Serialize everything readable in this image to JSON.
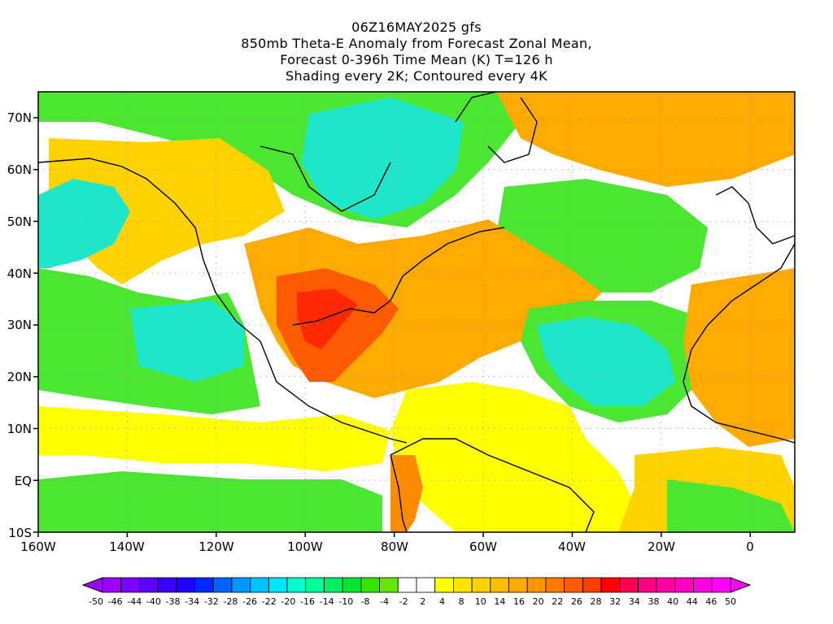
{
  "title": {
    "line1": "06Z16MAY2025 gfs",
    "line2": "850mb Theta-E Anomaly from Forecast Zonal Mean,",
    "line3": "Forecast 0-396h Time Mean (K) T=126 h",
    "line4": "Shading every 2K; Contoured every 4K"
  },
  "axes": {
    "lon_labels": [
      "160W",
      "140W",
      "120W",
      "100W",
      "80W",
      "60W",
      "40W",
      "20W",
      "0"
    ],
    "lat_labels": [
      "70N",
      "60N",
      "50N",
      "40N",
      "30N",
      "20N",
      "10N",
      "EQ",
      "10S"
    ],
    "lon_range": [
      -160,
      10
    ],
    "lat_range": [
      -10,
      75
    ]
  },
  "colorbar": {
    "labels": [
      "-50",
      "-46",
      "-44",
      "-40",
      "-38",
      "-34",
      "-32",
      "-28",
      "-26",
      "-22",
      "-20",
      "-16",
      "-14",
      "-10",
      "-8",
      "-4",
      "-2",
      "2",
      "4",
      "8",
      "10",
      "14",
      "16",
      "20",
      "22",
      "26",
      "28",
      "32",
      "34",
      "38",
      "40",
      "44",
      "46",
      "50"
    ],
    "colors": [
      "#9d00ff",
      "#7a00ff",
      "#5a00ff",
      "#3c00ff",
      "#1e00ff",
      "#0028ff",
      "#0064ff",
      "#0096ff",
      "#00c3ff",
      "#00e6ff",
      "#00ffcc",
      "#00ff96",
      "#00f064",
      "#00e632",
      "#32e600",
      "#64e600",
      "#ffffff",
      "#ffffff",
      "#ffff00",
      "#ffe600",
      "#ffd200",
      "#ffbe00",
      "#ffaa00",
      "#ff9600",
      "#ff7800",
      "#ff5a00",
      "#ff3c00",
      "#ff0000",
      "#ff0050",
      "#ff0080",
      "#ff00a0",
      "#ff00c0",
      "#ff00e0",
      "#ff00ff"
    ]
  },
  "field_colors": {
    "white": "#ffffff",
    "green": "#4be632",
    "lightgreen": "#32e678",
    "cyan": "#1ee6c8",
    "yellow": "#ffff00",
    "gold": "#ffd200",
    "orange": "#ffaa00",
    "darkorange": "#ff8c00",
    "red": "#ff5a00",
    "deepred": "#ff2800"
  }
}
